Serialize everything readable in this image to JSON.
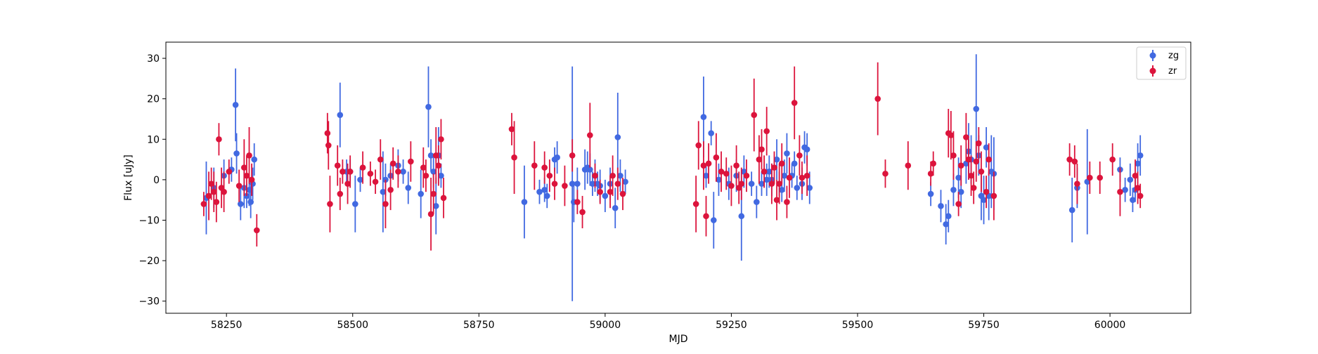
{
  "chart_data": {
    "type": "scatter",
    "title": "",
    "xlabel": "MJD",
    "ylabel": "Flux [uJy]",
    "xlim": [
      58130,
      60160
    ],
    "ylim": [
      -33,
      34
    ],
    "x_ticks": [
      58250,
      58500,
      58750,
      59000,
      59250,
      59500,
      59750,
      60000
    ],
    "x_tick_labels": [
      "58250",
      "58500",
      "58750",
      "59000",
      "59250",
      "59500",
      "59750",
      "60000"
    ],
    "y_ticks": [
      -30,
      -20,
      -10,
      0,
      10,
      20,
      30
    ],
    "y_tick_labels": [
      "−30",
      "−20",
      "−10",
      "0",
      "10",
      "20",
      "30"
    ],
    "grid": false,
    "legend": {
      "placement": "top-right",
      "entries": [
        "zg",
        "zr"
      ]
    },
    "colors": {
      "zg": "#4169e1",
      "zr": "#dc143c"
    },
    "series": [
      {
        "name": "zg",
        "x": [
          58210,
          58225,
          58245,
          58260,
          58268,
          58270,
          58278,
          58285,
          58290,
          58295,
          58298,
          58302,
          58305,
          58475,
          58488,
          58495,
          58505,
          58515,
          58560,
          58565,
          58575,
          58590,
          58600,
          58610,
          58635,
          58650,
          58655,
          58660,
          58665,
          58670,
          58675,
          58840,
          58870,
          58880,
          58885,
          58900,
          58905,
          58935,
          58938,
          58945,
          58960,
          58965,
          58970,
          58975,
          58980,
          58985,
          58990,
          59000,
          59010,
          59020,
          59025,
          59030,
          59040,
          59195,
          59200,
          59210,
          59215,
          59225,
          59245,
          59260,
          59270,
          59275,
          59290,
          59300,
          59310,
          59320,
          59325,
          59330,
          59340,
          59345,
          59350,
          59355,
          59360,
          59370,
          59375,
          59380,
          59390,
          59395,
          59400,
          59405,
          59645,
          59665,
          59675,
          59680,
          59690,
          59700,
          59705,
          59715,
          59720,
          59725,
          59735,
          59740,
          59745,
          59750,
          59755,
          59760,
          59765,
          59770,
          59925,
          59935,
          59955,
          60020,
          60030,
          60040,
          60045,
          60050,
          60055,
          60060
        ],
        "y": [
          -4.5,
          -2,
          1,
          2.5,
          18.5,
          6.5,
          -6,
          -2,
          -4,
          -2.5,
          -5.5,
          -1,
          5,
          16,
          2,
          2,
          -6,
          0,
          -3,
          0,
          1,
          3.5,
          2,
          -2,
          -3.5,
          18,
          6,
          2,
          -6.5,
          6,
          1,
          -5.5,
          -3,
          -2.5,
          -4,
          5,
          5.5,
          -1,
          -5.5,
          -1,
          2.5,
          3,
          2.5,
          -1,
          1,
          -1,
          -1.5,
          -4,
          -1,
          -7,
          10.5,
          1,
          -0.5,
          15.5,
          1,
          11.5,
          -10,
          0,
          -1,
          1,
          -9,
          2,
          -1,
          -5.5,
          -1,
          0,
          2,
          0,
          5,
          -1,
          -2.5,
          1,
          6.5,
          1,
          4,
          -2,
          -1,
          8,
          7.5,
          -2,
          -3.5,
          -6.5,
          -11,
          -9,
          -2.5,
          0.5,
          -3,
          4,
          7,
          5,
          17.5,
          6,
          -4,
          -5,
          8,
          -4,
          2,
          1.5,
          -7.5,
          -2,
          -0.5,
          2.5,
          -2.5,
          0,
          -5,
          -2.5,
          4,
          6
        ],
        "err": [
          9,
          5,
          4,
          3,
          9,
          5,
          4,
          5,
          3,
          4,
          4,
          4,
          4,
          8,
          3,
          3,
          7,
          3,
          10,
          4,
          3,
          4,
          3,
          4,
          6,
          10,
          4,
          4,
          7,
          7,
          3,
          9,
          3,
          3,
          3,
          3,
          4,
          29,
          5,
          4,
          5,
          4,
          4,
          3,
          4,
          3,
          4,
          4,
          4,
          5,
          11,
          4,
          3,
          10,
          3,
          3,
          7,
          4,
          4,
          4,
          11,
          4,
          3,
          4,
          3,
          4,
          4,
          4,
          5,
          3,
          3,
          4,
          5,
          3,
          3,
          3,
          4,
          4,
          4,
          4,
          3,
          4,
          5,
          4,
          4,
          5,
          4,
          5,
          7,
          6,
          13.5,
          5,
          6,
          6,
          5,
          6,
          9,
          9,
          8,
          5,
          13,
          3,
          3,
          4,
          3,
          3,
          5,
          5
        ]
      },
      {
        "name": "zr",
        "x": [
          58205,
          58215,
          58220,
          58225,
          58230,
          58235,
          58240,
          58245,
          58255,
          58275,
          58285,
          58290,
          58295,
          58300,
          58310,
          58450,
          58452,
          58455,
          58470,
          58475,
          58480,
          58490,
          58495,
          58520,
          58535,
          58545,
          58555,
          58565,
          58575,
          58580,
          58590,
          58615,
          58640,
          58645,
          58655,
          58660,
          58665,
          58670,
          58675,
          58680,
          58815,
          58820,
          58860,
          58880,
          58890,
          58900,
          58920,
          58935,
          58945,
          58955,
          58970,
          58980,
          58990,
          59010,
          59015,
          59025,
          59035,
          59180,
          59185,
          59195,
          59200,
          59205,
          59220,
          59230,
          59240,
          59250,
          59260,
          59265,
          59270,
          59280,
          59295,
          59305,
          59310,
          59315,
          59320,
          59330,
          59335,
          59340,
          59345,
          59350,
          59360,
          59365,
          59375,
          59385,
          59390,
          59400,
          59540,
          59555,
          59600,
          59645,
          59650,
          59680,
          59685,
          59690,
          59700,
          59705,
          59715,
          59720,
          59725,
          59730,
          59735,
          59740,
          59745,
          59755,
          59760,
          59770,
          59920,
          59930,
          59935,
          59960,
          59980,
          60005,
          60020,
          60050,
          60055,
          60060
        ],
        "y": [
          -6,
          -4,
          -1,
          -3,
          -5.5,
          10,
          -2,
          -3,
          2,
          -1.5,
          3,
          1,
          6,
          0,
          -12.5,
          11.5,
          8.5,
          -6,
          3.5,
          -3.5,
          2,
          -1,
          2,
          3,
          1.5,
          -0.5,
          5,
          -6,
          -2.5,
          4,
          2,
          4.5,
          3,
          1,
          -8.5,
          -3.5,
          6,
          3.5,
          10,
          -4.5,
          12.5,
          5.5,
          3.5,
          3,
          1,
          -1,
          -1.5,
          6,
          -5.5,
          -8,
          11,
          1,
          -3,
          -3,
          1,
          -1,
          -3.5,
          -6,
          8.5,
          3.5,
          -9,
          4,
          5.5,
          2,
          1.5,
          -1.5,
          3.5,
          -2,
          -1,
          1,
          16,
          5,
          7.5,
          2,
          12,
          -1,
          3,
          -5,
          -1,
          4,
          -5.5,
          0.5,
          19,
          6,
          0.5,
          1,
          20,
          1.5,
          3.5,
          1.5,
          4,
          11.5,
          11,
          6,
          -6,
          3.5,
          10.5,
          5,
          1,
          -2,
          4.5,
          9,
          2,
          -3,
          5,
          -4,
          5,
          4.5,
          -1,
          0.5,
          0.5,
          5,
          -3,
          1,
          -2,
          -4
        ],
        "err": [
          3,
          6,
          4,
          5,
          5,
          4,
          5,
          5,
          3,
          4,
          7,
          5,
          7,
          4,
          4,
          5,
          6,
          7,
          5,
          4,
          3,
          5,
          4,
          4,
          3,
          3,
          5,
          6,
          5,
          4,
          4,
          5,
          5,
          4,
          9,
          5,
          7,
          5,
          5,
          5,
          4,
          9,
          6,
          4,
          4,
          4,
          5,
          4,
          3,
          4,
          8,
          3,
          3,
          4,
          5,
          4,
          4,
          7,
          6,
          6,
          5,
          5,
          6,
          5,
          4,
          5,
          5,
          4,
          4,
          4,
          9,
          6,
          5,
          4,
          6,
          5,
          4,
          5,
          5,
          5,
          4,
          5,
          9,
          5,
          4,
          5,
          9,
          3.5,
          6,
          3,
          3,
          6,
          6,
          6,
          3,
          5,
          6,
          5,
          5,
          4,
          5,
          4,
          5,
          4,
          4,
          6,
          4,
          4,
          5,
          4,
          4,
          4,
          6,
          4,
          4,
          3
        ]
      }
    ]
  }
}
